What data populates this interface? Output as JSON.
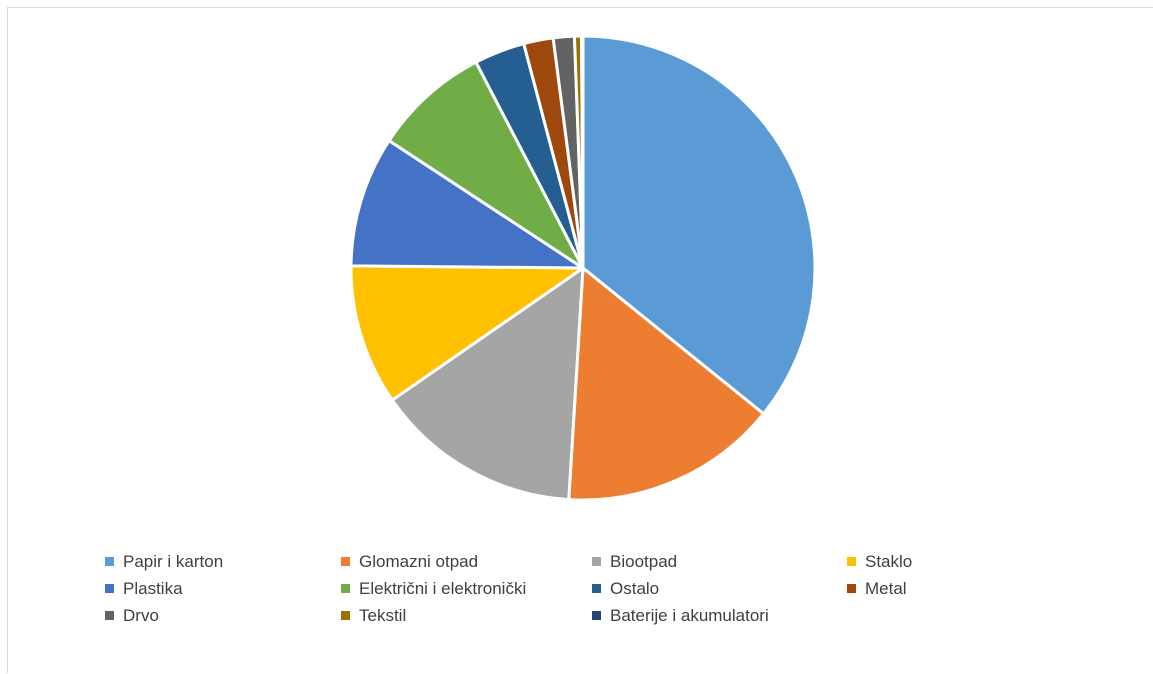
{
  "chart_data": {
    "type": "pie",
    "title": "",
    "categories": [
      "Papir i karton",
      "Glomazni otpad",
      "Biootpad",
      "Staklo",
      "Plastika",
      "Električni i elektronički",
      "Ostalo",
      "Metal",
      "Drvo",
      "Tekstil",
      "Baterije i akumulatori"
    ],
    "values": [
      36.6,
      15.5,
      14.7,
      10.0,
      9.3,
      8.3,
      3.6,
      2.1,
      1.5,
      0.5,
      0.1
    ],
    "colors": [
      "#5b9bd5",
      "#ed7d31",
      "#a5a5a5",
      "#ffc000",
      "#4472c4",
      "#70ad47",
      "#255e91",
      "#9e480e",
      "#636363",
      "#997300",
      "#264478"
    ],
    "legend_position": "bottom",
    "slice_border_color": "#ffffff"
  }
}
